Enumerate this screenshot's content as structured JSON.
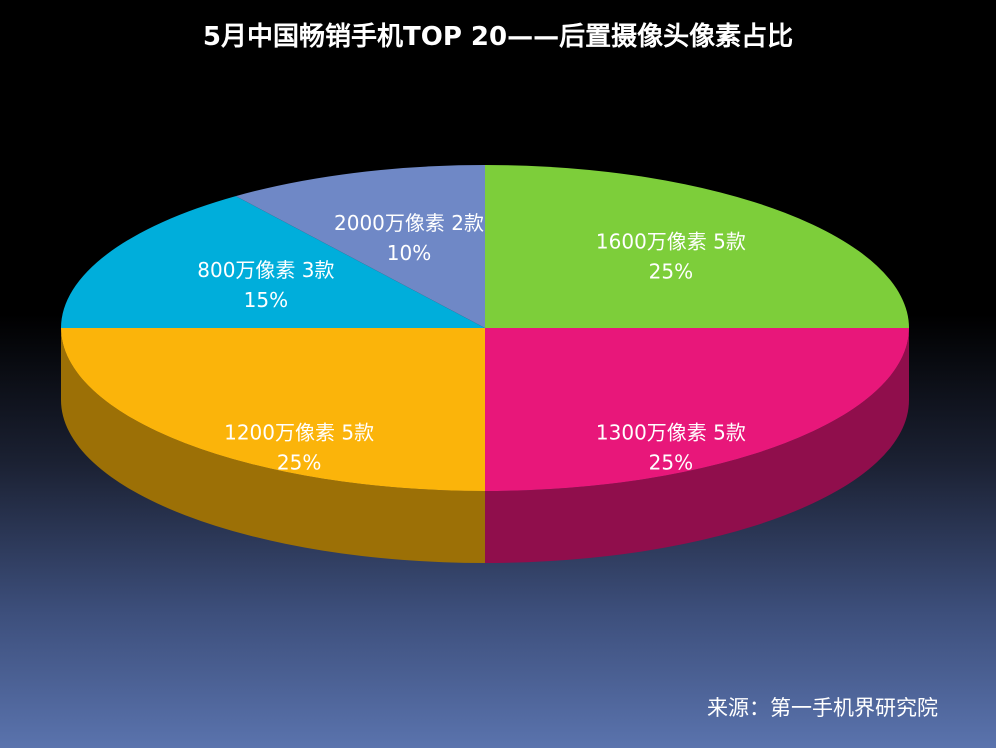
{
  "title": "5月中国畅销手机TOP 20——后置摄像头像素占比",
  "source": "来源：第一手机界研究院",
  "chart_data": {
    "type": "pie",
    "title": "5月中国畅销手机TOP 20——后置摄像头像素占比",
    "slices": [
      {
        "label": "1600万像素 5款",
        "pct": "25%",
        "value": 25,
        "color": "#7dce3a"
      },
      {
        "label": "1300万像素 5款",
        "pct": "25%",
        "value": 25,
        "color": "#e8177a"
      },
      {
        "label": "1200万像素 5款",
        "pct": "25%",
        "value": 25,
        "color": "#fbb40a"
      },
      {
        "label": "800万像素 3款",
        "pct": "15%",
        "value": 15,
        "color": "#00aedb"
      },
      {
        "label": "2000万像素 2款",
        "pct": "10%",
        "value": 10,
        "color": "#6f88c6"
      }
    ],
    "style": "3d"
  }
}
